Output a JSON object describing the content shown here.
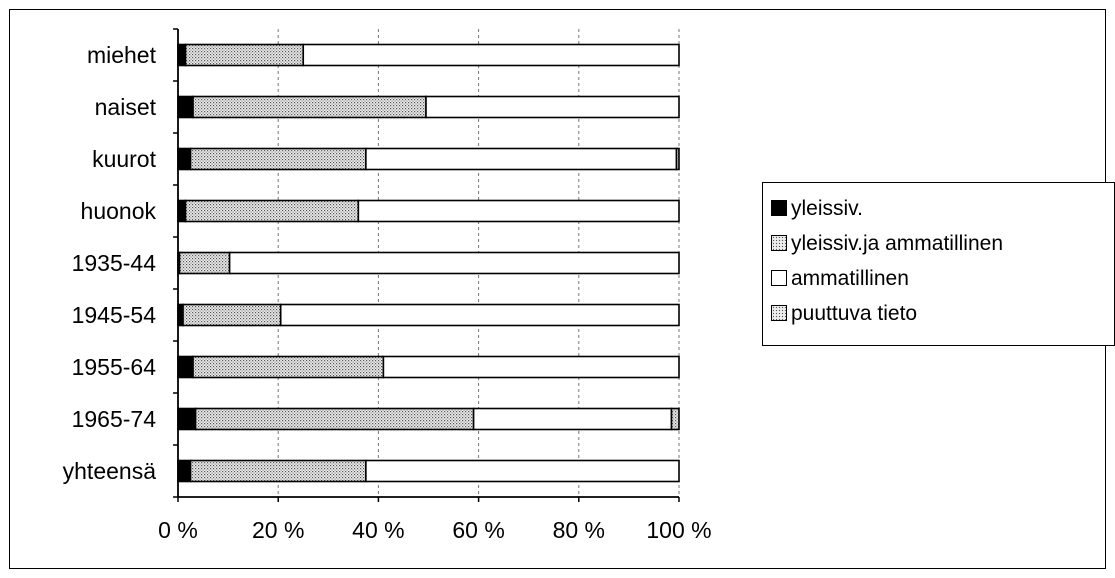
{
  "chart_data": {
    "type": "bar",
    "orientation": "horizontal",
    "stacked": "percent",
    "title": "",
    "xlabel": "",
    "ylabel": "",
    "xlim": [
      0,
      100
    ],
    "x_ticks": [
      "0 %",
      "20 %",
      "40 %",
      "60 %",
      "80 %",
      "100 %"
    ],
    "grid": "vertical dashed",
    "legend_position": "right",
    "categories": [
      "miehet",
      "naiset",
      "kuurot",
      "huonok",
      "1935-44",
      "1945-54",
      "1955-64",
      "1965-74",
      "yhteensä"
    ],
    "series": [
      {
        "name": "yleissiv.",
        "pattern": "solid",
        "color": "#000000",
        "values": [
          1.5,
          3,
          2.5,
          1.5,
          0.3,
          1,
          3,
          3.5,
          2.5
        ]
      },
      {
        "name": "yleissiv.ja ammatillinen",
        "pattern": "dotted",
        "color": "#c8c8c8",
        "values": [
          23.5,
          46.5,
          35,
          34.5,
          10,
          19.5,
          38,
          55.5,
          35
        ]
      },
      {
        "name": "ammatillinen",
        "pattern": "white",
        "color": "#ffffff",
        "values": [
          75,
          50.5,
          62,
          64,
          89.7,
          79.5,
          59,
          39.5,
          62.5
        ]
      },
      {
        "name": "puuttuva tieto",
        "pattern": "dotted",
        "color": "#c8c8c8",
        "values": [
          0,
          0,
          0.5,
          0,
          0,
          0,
          0,
          1.5,
          0
        ]
      }
    ]
  }
}
